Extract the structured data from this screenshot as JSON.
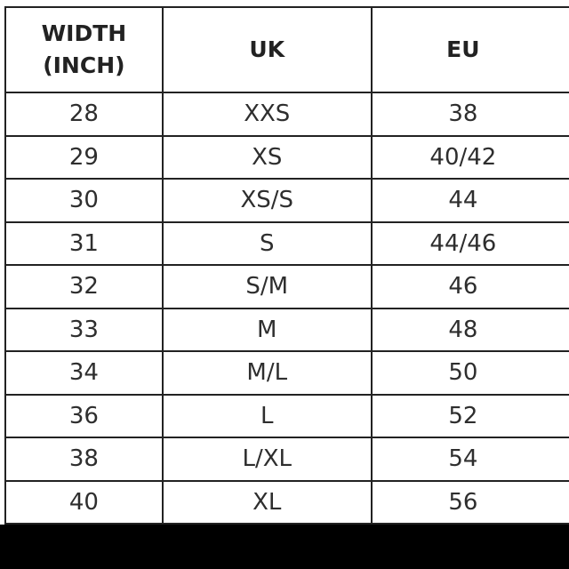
{
  "headers": [
    "WIDTH (INCH)",
    "UK",
    "EU"
  ],
  "rows": [
    [
      "28",
      "XXS",
      "38"
    ],
    [
      "29",
      "XS",
      "40/42"
    ],
    [
      "30",
      "XS/S",
      "44"
    ],
    [
      "31",
      "S",
      "44/46"
    ],
    [
      "32",
      "S/M",
      "46"
    ],
    [
      "33",
      "M",
      "48"
    ],
    [
      "34",
      "M/L",
      "50"
    ],
    [
      "36",
      "L",
      "52"
    ],
    [
      "38",
      "L/XL",
      "54"
    ],
    [
      "40",
      "XL",
      "56"
    ]
  ]
}
